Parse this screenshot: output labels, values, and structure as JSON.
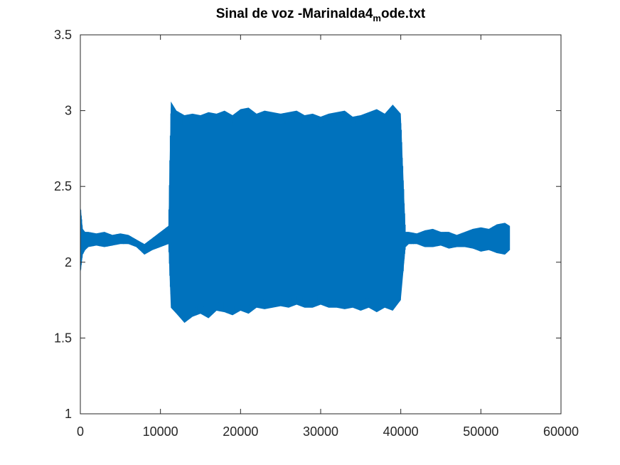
{
  "chart_data": {
    "type": "line",
    "title": "Sinal de voz -Marinalda4",
    "title_subscript": "m",
    "title_suffix": "ode.txt",
    "xlabel": "",
    "ylabel": "",
    "xlim": [
      0,
      60000
    ],
    "ylim": [
      1,
      3.5
    ],
    "xticks": [
      0,
      10000,
      20000,
      30000,
      40000,
      50000,
      60000
    ],
    "yticks": [
      1,
      1.5,
      2,
      2.5,
      3,
      3.5
    ],
    "grid": false,
    "legend": "none",
    "color": "#0072BD",
    "series": [
      {
        "x": [
          0,
          300,
          600,
          1000,
          2000,
          3000,
          4000,
          5000,
          6000,
          7000,
          8000,
          9000,
          10000,
          11000,
          11300,
          12000,
          13000,
          14000,
          15000,
          16000,
          17000,
          18000,
          19000,
          20000,
          21000,
          22000,
          23000,
          24000,
          25000,
          26000,
          27000,
          28000,
          29000,
          30000,
          31000,
          32000,
          33000,
          34000,
          35000,
          36000,
          37000,
          38000,
          39000,
          40000,
          40600,
          41000,
          42000,
          43000,
          44000,
          45000,
          46000,
          47000,
          48000,
          49000,
          50000,
          51000,
          52000,
          53000,
          53600
        ],
        "y_max": [
          2.38,
          2.22,
          2.2,
          2.2,
          2.19,
          2.2,
          2.18,
          2.19,
          2.18,
          2.15,
          2.12,
          2.16,
          2.2,
          2.24,
          3.06,
          3.0,
          2.97,
          2.98,
          2.97,
          2.99,
          2.98,
          3.0,
          2.97,
          3.01,
          3.02,
          2.98,
          3.0,
          2.99,
          2.98,
          2.99,
          3.0,
          2.97,
          2.98,
          2.96,
          2.98,
          2.99,
          3.0,
          2.96,
          2.97,
          2.99,
          3.01,
          2.98,
          3.04,
          2.98,
          2.2,
          2.2,
          2.19,
          2.21,
          2.22,
          2.2,
          2.2,
          2.18,
          2.2,
          2.22,
          2.23,
          2.22,
          2.25,
          2.26,
          2.24
        ],
        "y_min": [
          1.92,
          2.05,
          2.08,
          2.1,
          2.11,
          2.1,
          2.11,
          2.12,
          2.12,
          2.1,
          2.05,
          2.08,
          2.1,
          2.12,
          1.7,
          1.66,
          1.6,
          1.64,
          1.66,
          1.63,
          1.68,
          1.67,
          1.65,
          1.68,
          1.66,
          1.7,
          1.69,
          1.7,
          1.71,
          1.7,
          1.72,
          1.7,
          1.7,
          1.72,
          1.7,
          1.7,
          1.69,
          1.7,
          1.68,
          1.7,
          1.67,
          1.7,
          1.68,
          1.75,
          2.1,
          2.12,
          2.12,
          2.1,
          2.1,
          2.11,
          2.09,
          2.1,
          2.1,
          2.09,
          2.07,
          2.08,
          2.06,
          2.05,
          2.08
        ]
      }
    ]
  }
}
